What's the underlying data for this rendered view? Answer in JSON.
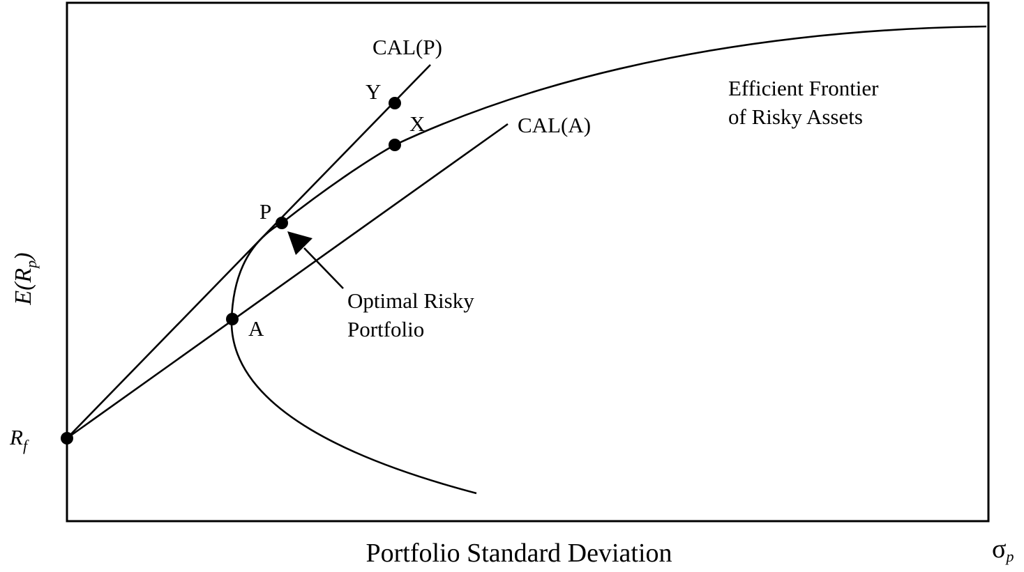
{
  "axes": {
    "x_title": "Portfolio Standard Deviation",
    "x_symbol": "σ",
    "x_symbol_sub": "p",
    "y_title_main": "E(R",
    "y_title_sub": "p",
    "y_title_close": ")"
  },
  "risk_free": {
    "label_main": "R",
    "label_sub": "f"
  },
  "lines": {
    "cal_p": "CAL(P)",
    "cal_a": "CAL(A)"
  },
  "points": {
    "p": "P",
    "a": "A",
    "x": "X",
    "y": "Y"
  },
  "frontier_label": {
    "line1": "Efficient Frontier",
    "line2": "of Risky Assets"
  },
  "optimal_label": {
    "line1": "Optimal Risky",
    "line2": "Portfolio"
  }
}
